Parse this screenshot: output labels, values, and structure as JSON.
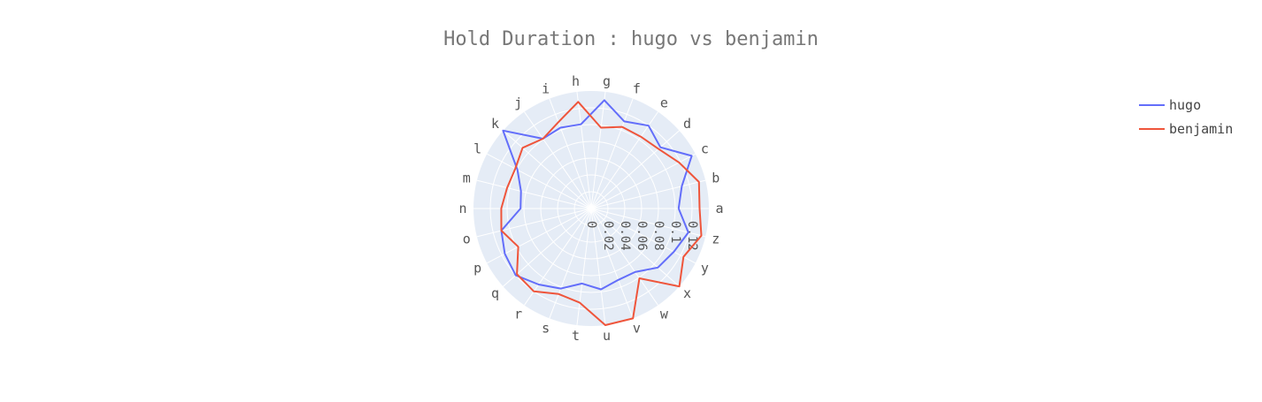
{
  "chart_data": {
    "type": "line-polar",
    "title": "Hold Duration : hugo vs benjamin",
    "angular_categories": [
      "a",
      "b",
      "c",
      "d",
      "e",
      "f",
      "g",
      "h",
      "i",
      "j",
      "k",
      "l",
      "m",
      "n",
      "o",
      "p",
      "q",
      "r",
      "s",
      "t",
      "u",
      "v",
      "w",
      "x",
      "y",
      "z"
    ],
    "radial_range": [
      0,
      0.14
    ],
    "radial_ticks": [
      "0",
      "0.02",
      "0.04",
      "0.06",
      "0.08",
      "0.1",
      "0.12"
    ],
    "radial_tick_values": [
      0,
      0.02,
      0.04,
      0.06,
      0.08,
      0.1,
      0.12
    ],
    "legend_position": "top-right",
    "series": [
      {
        "name": "hugo",
        "color": "#636efa",
        "values": [
          0.104,
          0.111,
          0.135,
          0.11,
          0.12,
          0.111,
          0.13,
          0.101,
          0.103,
          0.101,
          0.14,
          0.099,
          0.086,
          0.084,
          0.11,
          0.116,
          0.12,
          0.11,
          0.102,
          0.09,
          0.097,
          0.091,
          0.092,
          0.106,
          0.111,
          0.119
        ]
      },
      {
        "name": "benjamin",
        "color": "#ef553b",
        "values": [
          0.129,
          0.132,
          0.118,
          0.107,
          0.104,
          0.104,
          0.097,
          0.128,
          0.11,
          0.101,
          0.109,
          0.102,
          0.103,
          0.107,
          0.11,
          0.098,
          0.118,
          0.12,
          0.109,
          0.113,
          0.14,
          0.14,
          0.101,
          0.14,
          0.124,
          0.135
        ]
      }
    ]
  }
}
